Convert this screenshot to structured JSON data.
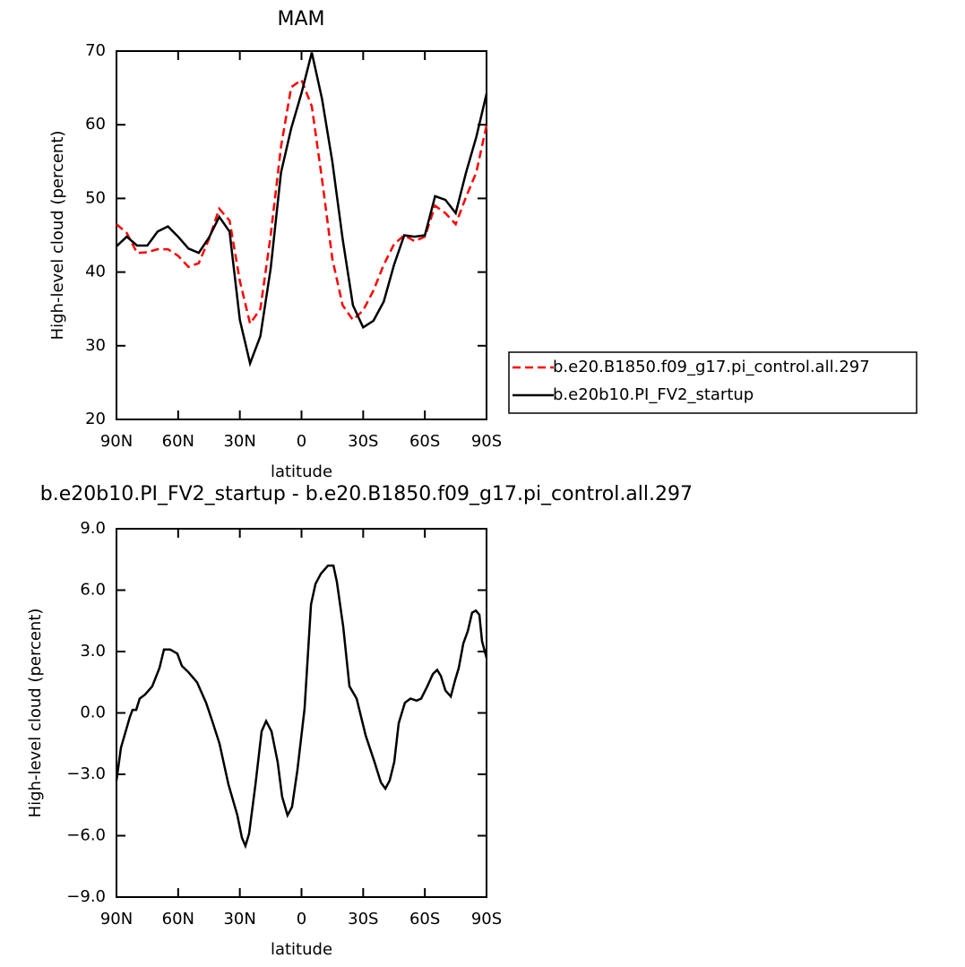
{
  "chart_data": [
    {
      "type": "line",
      "title": "MAM",
      "xlabel": "latitude",
      "ylabel": "High-level cloud (percent)",
      "x": [
        90,
        85,
        80,
        75,
        70,
        65,
        60,
        55,
        50,
        45,
        40,
        35,
        30,
        25,
        20,
        15,
        10,
        5,
        0,
        -5,
        -10,
        -15,
        -20,
        -25,
        -30,
        -35,
        -40,
        -45,
        -50,
        -55,
        -60,
        -65,
        -70,
        -75,
        -80,
        -85,
        -90
      ],
      "series": [
        {
          "name": "b.e20.B1850.f09_g17.pi_control.all.297",
          "color": "#ff0000",
          "line_style": "dashed",
          "values": [
            46.5,
            45.3,
            42.6,
            42.7,
            43.1,
            43.1,
            42.2,
            40.7,
            41.2,
            44.5,
            48.6,
            47,
            38.8,
            33,
            35,
            45,
            57,
            65.1,
            66.1,
            62.5,
            52.6,
            41.8,
            35.5,
            33.5,
            34.8,
            37.5,
            41,
            43.8,
            45,
            44.2,
            44.8,
            49,
            48,
            46.5,
            50.2,
            53.5,
            59.9
          ]
        },
        {
          "name": "b.e20b10.PI_FV2_startup",
          "color": "#000000",
          "line_style": "solid",
          "values": [
            43.5,
            44.8,
            43.6,
            43.6,
            45.5,
            46.2,
            44.8,
            43.2,
            42.6,
            44.7,
            47.5,
            45.5,
            33.5,
            27.6,
            31.3,
            40.5,
            53.5,
            59.5,
            64.3,
            69.8,
            63.5,
            55,
            44.5,
            35.5,
            32.5,
            33.4,
            36,
            41,
            45,
            44.8,
            45,
            50.3,
            49.8,
            48,
            53.5,
            58.3,
            64.2
          ]
        }
      ],
      "xlim": [
        90,
        -90
      ],
      "xticks": [
        {
          "value": 90,
          "label": "90N"
        },
        {
          "value": 60,
          "label": "60N"
        },
        {
          "value": 30,
          "label": "30N"
        },
        0,
        {
          "value": -30,
          "label": "30S"
        },
        {
          "value": -60,
          "label": "60S"
        },
        {
          "value": -90,
          "label": "90S"
        }
      ],
      "ylim": [
        20,
        70
      ],
      "yticks": [
        20,
        30,
        40,
        50,
        60,
        70
      ],
      "legend": "right"
    },
    {
      "type": "line",
      "title": "b.e20b10.PI_FV2_startup - b.e20.B1850.f09_g17.pi_control.all.297",
      "xlabel": "latitude",
      "ylabel": "High-level cloud (percent)",
      "x": [
        90,
        87.8,
        83.5,
        82.2,
        80.4,
        78.7,
        76.1,
        72.6,
        69.1,
        66.9,
        63.9,
        60.4,
        58.2,
        55.1,
        50.8,
        46.4,
        43.4,
        39.9,
        35.5,
        31.2,
        29,
        27.3,
        25.5,
        22.4,
        19.4,
        17.2,
        14.6,
        11.6,
        9.4,
        6.8,
        4.6,
        2,
        -1.5,
        -4.6,
        -6.8,
        -9.4,
        -12.9,
        -15.5,
        -17.2,
        -20.3,
        -23.3,
        -26.8,
        -31.2,
        -35.5,
        -38.6,
        -40.8,
        -42.9,
        -45.1,
        -47.3,
        -50.3,
        -53,
        -56,
        -58.2,
        -61.2,
        -63.9,
        -66,
        -67.8,
        -70,
        -72.6,
        -74.7,
        -76.5,
        -78.7,
        -80.9,
        -83,
        -84.8,
        -86.5,
        -87.8,
        -90
      ],
      "series": [
        {
          "name": "difference",
          "color": "#000000",
          "line_style": "solid",
          "values": [
            -3.3,
            -1.7,
            -0.2,
            0.15,
            0.15,
            0.7,
            0.9,
            1.3,
            2.2,
            3.1,
            3.1,
            2.9,
            2.3,
            2.0,
            1.5,
            0.5,
            -0.4,
            -1.5,
            -3.5,
            -5,
            -6.1,
            -6.5,
            -5.9,
            -3.5,
            -0.9,
            -0.4,
            -0.9,
            -2.4,
            -4.1,
            -5,
            -4.6,
            -2.8,
            0.2,
            5.3,
            6.3,
            6.8,
            7.2,
            7.2,
            6.4,
            4.2,
            1.3,
            0.7,
            -1.1,
            -2.4,
            -3.4,
            -3.7,
            -3.3,
            -2.4,
            -0.5,
            0.5,
            0.7,
            0.6,
            0.7,
            1.3,
            1.9,
            2.1,
            1.8,
            1.1,
            0.8,
            1.6,
            2.2,
            3.4,
            4.0,
            4.9,
            5.0,
            4.8,
            3.5,
            2.7
          ]
        }
      ],
      "xlim": [
        90,
        -90
      ],
      "xticks": [
        {
          "value": 90,
          "label": "90N"
        },
        {
          "value": 60,
          "label": "60N"
        },
        {
          "value": 30,
          "label": "30N"
        },
        0,
        {
          "value": -30,
          "label": "30S"
        },
        {
          "value": -60,
          "label": "60S"
        },
        {
          "value": -90,
          "label": "90S"
        }
      ],
      "ylim": [
        -9,
        9
      ],
      "yticks": [
        {
          "value": -9,
          "label": "−9.0"
        },
        {
          "value": -6,
          "label": "−6.0"
        },
        {
          "value": -3,
          "label": "−3.0"
        },
        {
          "value": 0,
          "label": "0.0"
        },
        {
          "value": 3,
          "label": "3.0"
        },
        {
          "value": 6,
          "label": "6.0"
        },
        {
          "value": 9,
          "label": "9.0"
        }
      ]
    }
  ]
}
